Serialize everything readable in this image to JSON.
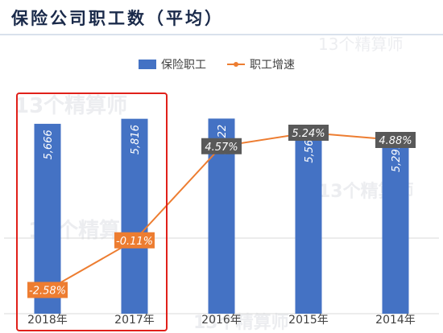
{
  "title": "保险公司职工数（平均）",
  "watermark": "13个精算师",
  "colors": {
    "bar": "#4472c4",
    "line": "#ed7d31",
    "label_box_dark": "#595959",
    "label_box_orange": "#ed7d31",
    "highlight_frame": "#e0201a",
    "grid": "#d9d9d9"
  },
  "chart_data": {
    "type": "bar",
    "categories": [
      "2018年",
      "2017年",
      "2016年",
      "2015年",
      "2014年"
    ],
    "series": [
      {
        "name": "保险职工",
        "type": "bar",
        "values": [
          5666,
          5816,
          5822,
          5568,
          5291
        ],
        "labels": [
          "5,666",
          "5,816",
          "5,822",
          "5,568",
          "5,291"
        ]
      },
      {
        "name": "职工增速",
        "type": "line",
        "values": [
          -2.58,
          -0.11,
          4.57,
          5.24,
          4.88
        ],
        "labels": [
          "-2.58%",
          "-0.11%",
          "4.57%",
          "5.24%",
          "4.88%"
        ]
      }
    ],
    "legend_position": "top",
    "highlighted_categories": [
      "2018年",
      "2017年"
    ]
  }
}
